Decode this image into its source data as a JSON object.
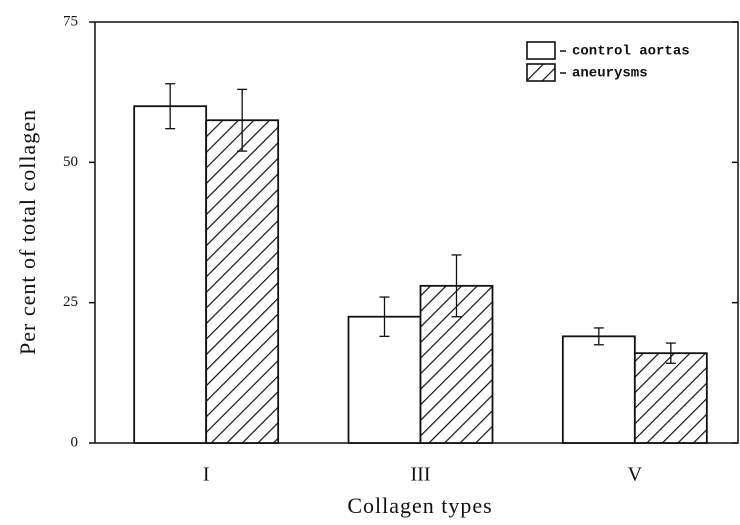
{
  "chart_data": {
    "type": "bar",
    "xlabel": "Collagen types",
    "ylabel": "Per cent of total collagen",
    "categories": [
      "I",
      "III",
      "V"
    ],
    "series": [
      {
        "name": "control aortas",
        "color": "#ffffff",
        "hatch": false,
        "values": [
          60,
          22.5,
          19
        ],
        "errors": [
          4,
          3.5,
          1.5
        ]
      },
      {
        "name": "aneurysms",
        "color": "#ffffff",
        "hatch": true,
        "values": [
          57.5,
          28,
          16
        ],
        "errors": [
          5.5,
          5.5,
          1.8
        ]
      }
    ],
    "ylim": [
      0,
      75
    ],
    "yticks": [
      0,
      25,
      50,
      75
    ],
    "legend": "upper right"
  }
}
